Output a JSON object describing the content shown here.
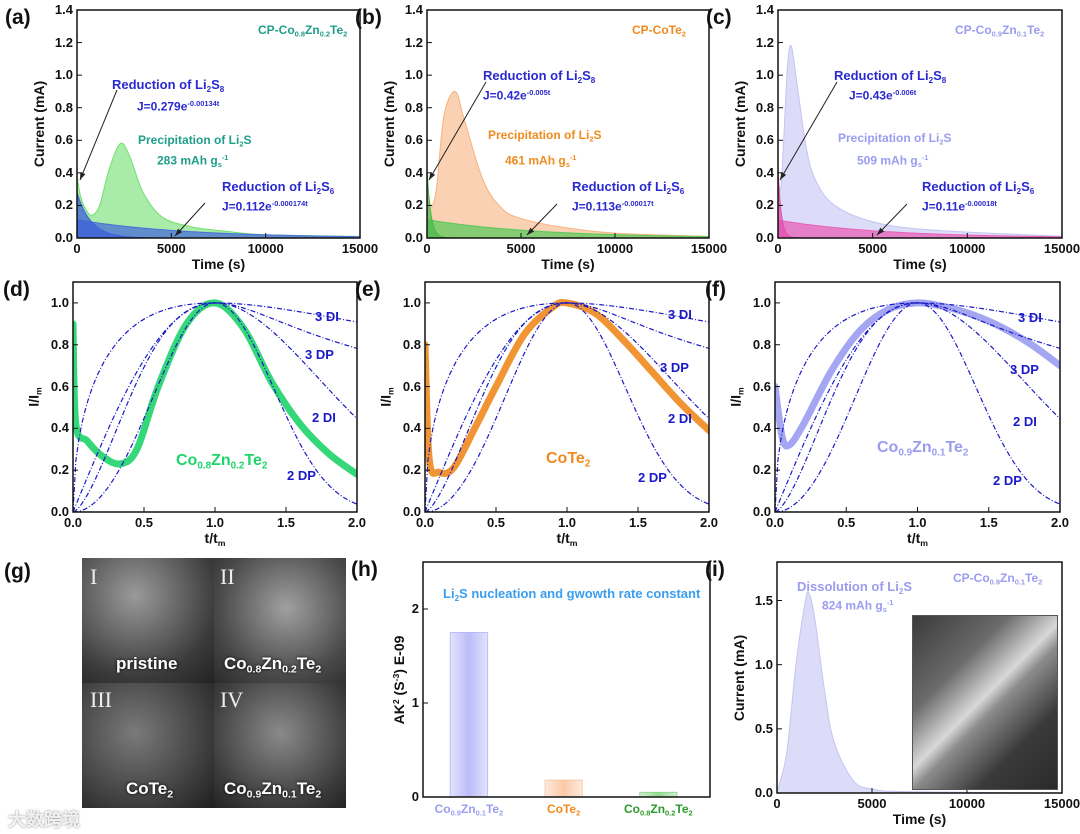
{
  "colors": {
    "blue_label": "#2a2ad0",
    "green_a": "#6fe06f",
    "blue_a": "#4a6ed8",
    "orange_b": "#f6b27e",
    "lav_c": "#c4c4f4",
    "pink_c": "#e860b8",
    "model": "#1a1ac8",
    "title_h": "#3a9ef0"
  },
  "watermark": "大数跨境",
  "chart_data": [
    {
      "id": "a",
      "letter": "(a)",
      "type": "area",
      "xlabel": "Time (s)",
      "ylabel": "Current (mA)",
      "xlim": [
        0,
        15000
      ],
      "ylim": [
        0,
        1.4
      ],
      "xticks": [
        0,
        5000,
        10000,
        15000
      ],
      "xtick_labels": [
        "0",
        "5000",
        "10000",
        "15000"
      ],
      "yticks": [
        0,
        0.2,
        0.4,
        0.6,
        0.8,
        1.0,
        1.2,
        1.4
      ],
      "ytick_labels": [
        "0.0",
        "0.2",
        "0.4",
        "0.6",
        "0.8",
        "1.0",
        "1.2",
        "1.4"
      ],
      "series": [
        {
          "name": "measured",
          "kind": "area",
          "color": "#6fe06f",
          "x": [
            0,
            200,
            500,
            800,
            1200,
            1700,
            2300,
            2800,
            3500,
            4500,
            6000,
            8000,
            10000,
            15000
          ],
          "y": [
            0.38,
            0.25,
            0.17,
            0.14,
            0.2,
            0.42,
            0.58,
            0.5,
            0.28,
            0.13,
            0.07,
            0.04,
            0.02,
            0.01
          ]
        },
        {
          "name": "Li2S6 fit",
          "kind": "exp",
          "color": "#4a6ed8",
          "A": 0.112,
          "k": 0.000174
        },
        {
          "name": "Li2S8 fit",
          "kind": "exp",
          "color": "#3d5fd8",
          "A": 0.279,
          "k": 0.00134
        }
      ],
      "annotations": [
        "CP-Co_{0.8}Zn_{0.2}Te_{2}",
        "Reduction of Li_{2}S_{8}",
        "J=0.279e^{-0.00134t}",
        "Precipitation of Li_{2}S",
        "283 mAh g_{s}^{-1}",
        "Reduction of Li_{2}S_{6}",
        "J=0.112e^{-0.000174t}"
      ]
    },
    {
      "id": "b",
      "letter": "(b)",
      "type": "area",
      "xlabel": "Time (s)",
      "ylabel": "Current (mA)",
      "xlim": [
        0,
        15000
      ],
      "ylim": [
        0,
        1.4
      ],
      "xticks": [
        0,
        5000,
        10000,
        15000
      ],
      "xtick_labels": [
        "0",
        "5000",
        "10000",
        "15000"
      ],
      "yticks": [
        0,
        0.2,
        0.4,
        0.6,
        0.8,
        1.0,
        1.2,
        1.4
      ],
      "ytick_labels": [
        "0.0",
        "0.2",
        "0.4",
        "0.6",
        "0.8",
        "1.0",
        "1.2",
        "1.4"
      ],
      "series": [
        {
          "name": "measured",
          "kind": "area",
          "color": "#f6b27e",
          "x": [
            0,
            200,
            500,
            900,
            1500,
            2000,
            3000,
            4000,
            5000,
            7000,
            10000,
            15000
          ],
          "y": [
            0.36,
            0.2,
            0.3,
            0.75,
            0.9,
            0.72,
            0.35,
            0.18,
            0.12,
            0.07,
            0.03,
            0.01
          ]
        },
        {
          "name": "Li2S6 fit",
          "kind": "exp",
          "color": "#5cc85c",
          "A": 0.113,
          "k": 0.00017
        },
        {
          "name": "Li2S8 fit",
          "kind": "exp",
          "color": "#4cb84c",
          "A": 0.42,
          "k": 0.005
        }
      ],
      "annotations": [
        "CP-CoTe_{2}",
        "Reduction of Li_{2}S_{8}",
        "J=0.42e^{-0.005t}",
        "Precipitation of Li_{2}S",
        "461 mAh g_{s}^{-1}",
        "Reduction of Li_{2}S_{6}",
        "J=0.113e^{-0.00017t}"
      ]
    },
    {
      "id": "c",
      "letter": "(c)",
      "type": "area",
      "xlabel": "Time (s)",
      "ylabel": "Current (mA)",
      "xlim": [
        0,
        15000
      ],
      "ylim": [
        0,
        1.4
      ],
      "xticks": [
        0,
        5000,
        10000,
        15000
      ],
      "xtick_labels": [
        "0",
        "5000",
        "10000",
        "15000"
      ],
      "yticks": [
        0,
        0.2,
        0.4,
        0.6,
        0.8,
        1.0,
        1.2,
        1.4
      ],
      "ytick_labels": [
        "0.0",
        "0.2",
        "0.4",
        "0.6",
        "0.8",
        "1.0",
        "1.2",
        "1.4"
      ],
      "series": [
        {
          "name": "measured",
          "kind": "area",
          "color": "#c4c4f4",
          "x": [
            0,
            150,
            300,
            500,
            700,
            1000,
            1500,
            2000,
            3000,
            5000,
            8000,
            15000
          ],
          "y": [
            0.36,
            0.3,
            0.6,
            1.05,
            1.18,
            0.95,
            0.55,
            0.35,
            0.2,
            0.1,
            0.05,
            0.01
          ]
        },
        {
          "name": "Li2S6 fit",
          "kind": "exp",
          "color": "#e860b8",
          "A": 0.11,
          "k": 0.00018
        },
        {
          "name": "Li2S8 fit",
          "kind": "exp",
          "color": "#e050b0",
          "A": 0.43,
          "k": 0.006
        }
      ],
      "annotations": [
        "CP-Co_{0.9}Zn_{0.1}Te_{2}",
        "Reduction of Li_{2}S_{8}",
        "J=0.43e^{-0.006t}",
        "Precipitation of Li_{2}S",
        "509 mAh g_{s}^{-1}",
        "Reduction of Li_{2}S_{6}",
        "J=0.11e^{-0.00018t}"
      ]
    },
    {
      "id": "d",
      "letter": "(d)",
      "type": "line",
      "xlabel": "t/t_{m}",
      "ylabel": "I/I_{m}",
      "xlim": [
        0,
        2
      ],
      "ylim": [
        0,
        1.1
      ],
      "xticks": [
        0,
        0.5,
        1,
        1.5,
        2
      ],
      "xtick_labels": [
        "0.0",
        "0.5",
        "1.0",
        "1.5",
        "2.0"
      ],
      "yticks": [
        0,
        0.2,
        0.4,
        0.6,
        0.8,
        1.0
      ],
      "ytick_labels": [
        "0.0",
        "0.2",
        "0.4",
        "0.6",
        "0.8",
        "1.0"
      ],
      "series": [
        {
          "name": "Co0.8Zn0.2Te2",
          "kind": "thick",
          "color": "#1fd46a",
          "x": [
            0,
            0.02,
            0.1,
            0.2,
            0.33,
            0.45,
            0.6,
            0.8,
            1,
            1.2,
            1.4,
            1.6,
            1.8,
            2
          ],
          "y": [
            0.9,
            0.42,
            0.34,
            0.27,
            0.23,
            0.3,
            0.6,
            0.9,
            1,
            0.88,
            0.62,
            0.42,
            0.28,
            0.18
          ]
        }
      ],
      "models": [
        "3 DI",
        "3 DP",
        "2 DI",
        "2 DP"
      ],
      "annotations": [
        "3 DI",
        "3 DP",
        "2 DI",
        "2 DP",
        "Co_{0.8}Zn_{0.2}Te_{2}"
      ]
    },
    {
      "id": "e",
      "letter": "(e)",
      "type": "line",
      "xlabel": "t/t_{m}",
      "ylabel": "I/I_{m}",
      "xlim": [
        0,
        2
      ],
      "ylim": [
        0,
        1.1
      ],
      "xticks": [
        0,
        0.5,
        1,
        1.5,
        2
      ],
      "xtick_labels": [
        "0.0",
        "0.5",
        "1.0",
        "1.5",
        "2.0"
      ],
      "yticks": [
        0,
        0.2,
        0.4,
        0.6,
        0.8,
        1.0
      ],
      "ytick_labels": [
        "0.0",
        "0.2",
        "0.4",
        "0.6",
        "0.8",
        "1.0"
      ],
      "series": [
        {
          "name": "CoTe2",
          "kind": "thick",
          "color": "#f08a1e",
          "x": [
            0,
            0.03,
            0.1,
            0.2,
            0.35,
            0.5,
            0.7,
            0.9,
            1,
            1.2,
            1.4,
            1.6,
            1.8,
            2
          ],
          "y": [
            0.8,
            0.25,
            0.19,
            0.21,
            0.4,
            0.6,
            0.85,
            0.98,
            1,
            0.95,
            0.82,
            0.67,
            0.52,
            0.39
          ]
        }
      ],
      "models": [
        "3 DI",
        "3 DP",
        "2 DI",
        "2 DP"
      ],
      "annotations": [
        "3 DI",
        "3 DP",
        "2 DI",
        "2 DP",
        "CoTe_{2}"
      ]
    },
    {
      "id": "f",
      "letter": "(f)",
      "type": "line",
      "xlabel": "t/t_{m}",
      "ylabel": "I/I_{m}",
      "xlim": [
        0,
        2
      ],
      "ylim": [
        0,
        1.1
      ],
      "xticks": [
        0,
        0.5,
        1,
        1.5,
        2
      ],
      "xtick_labels": [
        "0.0",
        "0.5",
        "1.0",
        "1.5",
        "2.0"
      ],
      "yticks": [
        0,
        0.2,
        0.4,
        0.6,
        0.8,
        1.0
      ],
      "ytick_labels": [
        "0.0",
        "0.2",
        "0.4",
        "0.6",
        "0.8",
        "1.0"
      ],
      "series": [
        {
          "name": "Co0.9Zn0.1Te2",
          "kind": "thick",
          "color": "#9a9cf0",
          "x": [
            0,
            0.05,
            0.1,
            0.2,
            0.4,
            0.6,
            0.8,
            1,
            1.2,
            1.4,
            1.6,
            1.8,
            2
          ],
          "y": [
            0.6,
            0.36,
            0.32,
            0.42,
            0.68,
            0.87,
            0.97,
            1,
            0.98,
            0.94,
            0.88,
            0.8,
            0.7
          ]
        }
      ],
      "models": [
        "3 DI",
        "3 DP",
        "2 DI",
        "2 DP"
      ],
      "annotations": [
        "3 DI",
        "3 DP",
        "2 DI",
        "2 DP",
        "Co_{0.9}Zn_{0.1}Te_{2}"
      ]
    },
    {
      "id": "h",
      "letter": "(h)",
      "type": "bar",
      "xlabel": "",
      "ylabel": "AK^{2} (S^{-3}) E-09",
      "xlim": [
        0,
        3
      ],
      "ylim": [
        0,
        2.5
      ],
      "xticks": [],
      "xtick_labels": [],
      "yticks": [
        0,
        1,
        2
      ],
      "ytick_labels": [
        "0",
        "1",
        "2"
      ],
      "categories": [
        "Co_{0.9}Zn_{0.1}Te_{2}",
        "CoTe_{2}",
        "Co_{0.8}Zn_{0.2}Te_{2}"
      ],
      "values": [
        1.75,
        0.18,
        0.05
      ],
      "bar_colors": [
        "#8f8ff5",
        "#f6a86e",
        "#4cc04c"
      ],
      "label_colors": [
        "#9a9cf0",
        "#f08a1e",
        "#2a9a2a"
      ],
      "annotations": [
        "Li_{2}S nucleation and gwowth rate constant"
      ]
    },
    {
      "id": "i",
      "letter": "(i)",
      "type": "area",
      "xlabel": "Time (s)",
      "ylabel": "Current (mA)",
      "xlim": [
        0,
        15000
      ],
      "ylim": [
        0,
        1.8
      ],
      "xticks": [
        0,
        5000,
        10000,
        15000
      ],
      "xtick_labels": [
        "0",
        "5000",
        "10000",
        "15000"
      ],
      "yticks": [
        0,
        0.5,
        1.0,
        1.5
      ],
      "ytick_labels": [
        "0.0",
        "0.5",
        "1.0",
        "1.5"
      ],
      "series": [
        {
          "name": "dissolution",
          "kind": "area",
          "color": "#c4c4f4",
          "x": [
            0,
            500,
            1000,
            1500,
            1700,
            2000,
            2500,
            3000,
            4000,
            5000,
            7000,
            15000
          ],
          "y": [
            0.01,
            0.3,
            1.0,
            1.5,
            1.55,
            1.35,
            0.8,
            0.4,
            0.1,
            0.03,
            0.01,
            0
          ]
        }
      ],
      "annotations": [
        "Dissolution of Li_{2}S",
        "824 mAh g_{s}^{-1}",
        "CP-Co_{0.9}Zn_{0.1}Te_{2}"
      ]
    }
  ],
  "sem": {
    "letter": "(g)",
    "panels": [
      {
        "numeral": "I",
        "label": "pristine"
      },
      {
        "numeral": "II",
        "label": "Co_{0.8}Zn_{0.2}Te_{2}"
      },
      {
        "numeral": "III",
        "label": "CoTe_{2}"
      },
      {
        "numeral": "IV",
        "label": "Co_{0.9}Zn_{0.1}Te_{2}"
      }
    ]
  }
}
